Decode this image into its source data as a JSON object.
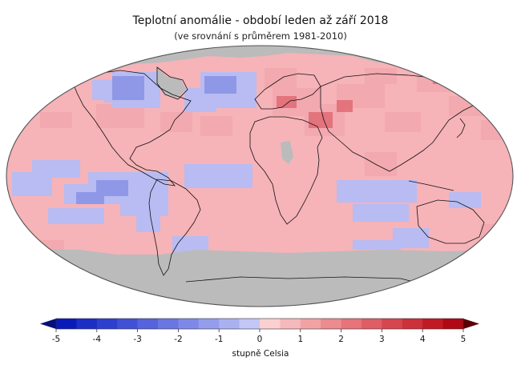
{
  "title": "Teplotní anomálie - období leden až září 2018",
  "subtitle": "(ve srovnání s průměrem 1981-2010)",
  "legend": {
    "unit": "stupně Celsia",
    "min": -5,
    "max": 5,
    "step": 0.5,
    "tick_values": [
      -5,
      -4,
      -3,
      -2,
      -1,
      0,
      1,
      2,
      3,
      4,
      5
    ],
    "tick_labels": [
      "-5",
      "-4",
      "-3",
      "-2",
      "-1",
      "0",
      "1",
      "2",
      "3",
      "4",
      "5"
    ],
    "colors": [
      "#0a1ab8",
      "#1d2ec6",
      "#2e3fcf",
      "#4250d6",
      "#5663dc",
      "#6a76e1",
      "#7e89e7",
      "#949dec",
      "#aab1f1",
      "#c2c7f6",
      "#fbd0d0",
      "#f6b9bb",
      "#f1a2a5",
      "#ec8b90",
      "#e6747a",
      "#df5d65",
      "#d6464f",
      "#cc303a",
      "#c01a25",
      "#b00814"
    ],
    "under_color": "#04107a",
    "over_color": "#5a0005",
    "no_data_color": "#bbbbbb"
  },
  "colors": {
    "ocean_base": "#f6b3b8",
    "land_base": "#f2a9af",
    "warm_strong": "#e06a74",
    "cool": "#b8bcf2",
    "cool_strong": "#8f98e6",
    "no_data": "#bbbbbb",
    "outline": "#111111"
  }
}
